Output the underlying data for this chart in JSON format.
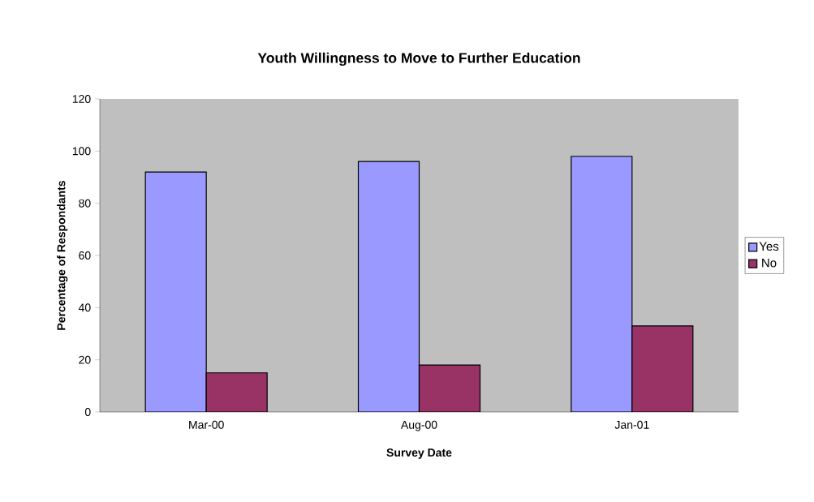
{
  "chart_data": {
    "type": "bar",
    "title": "Youth Willingness to Move to Further Education",
    "xlabel": "Survey Date",
    "ylabel": "Percentage of Respondants",
    "categories": [
      "Mar-00",
      "Aug-00",
      "Jan-01"
    ],
    "series": [
      {
        "name": "Yes",
        "color": "#9999ff",
        "values": [
          92,
          96,
          98
        ]
      },
      {
        "name": "No",
        "color": "#993366",
        "values": [
          15,
          18,
          33
        ]
      }
    ],
    "ylim": [
      0,
      120
    ],
    "yticks": [
      0,
      20,
      40,
      60,
      80,
      100,
      120
    ],
    "grid": false,
    "legend": "right"
  }
}
